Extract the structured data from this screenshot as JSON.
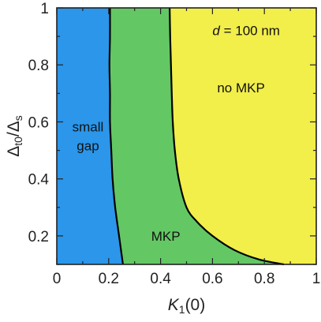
{
  "chart_data": {
    "type": "area",
    "title": "",
    "xlabel": {
      "main": "K",
      "sub": "1",
      "rest": "(0)"
    },
    "ylabel": {
      "delta1": "Δ",
      "sub1": "t0",
      "slash": "/",
      "delta2": "Δ",
      "sub2": "s"
    },
    "xlim": [
      0,
      1
    ],
    "ylim": [
      0.1,
      1
    ],
    "xticks": [
      0,
      0.2,
      0.4,
      0.6,
      0.8,
      1
    ],
    "xtick_labels": [
      "0",
      "0.2",
      "0.4",
      "0.6",
      "0.8",
      "1"
    ],
    "yticks": [
      0.2,
      0.4,
      0.6,
      0.8,
      1
    ],
    "ytick_labels": [
      "0.2",
      "0.4",
      "0.6",
      "0.8",
      "1"
    ],
    "grid": false,
    "annotation": {
      "italic": "d",
      "rest": " = 100 nm"
    },
    "colors": {
      "small_gap": "#2b96ea",
      "mkp": "#63c764",
      "no_mkp": "#f2ee4a",
      "boundary": "#000000"
    },
    "regions": [
      {
        "label_lines": [
          "small",
          "gap"
        ],
        "label_x": 0.12,
        "label_y": 0.55,
        "color_key": "small_gap"
      },
      {
        "label_lines": [
          "MKP"
        ],
        "label_x": 0.42,
        "label_y": 0.2,
        "color_key": "mkp"
      },
      {
        "label_lines": [
          "no MKP"
        ],
        "label_x": 0.71,
        "label_y": 0.72,
        "color_key": "no_mkp"
      }
    ],
    "boundaries": [
      {
        "between": [
          "small gap",
          "MKP"
        ],
        "points": [
          [
            0.255,
            0.1
          ],
          [
            0.24,
            0.2
          ],
          [
            0.225,
            0.3
          ],
          [
            0.215,
            0.4
          ],
          [
            0.21,
            0.5
          ],
          [
            0.205,
            0.6
          ],
          [
            0.205,
            0.7
          ],
          [
            0.203,
            0.8
          ],
          [
            0.205,
            0.9
          ],
          [
            0.205,
            1.0
          ]
        ]
      },
      {
        "between": [
          "MKP",
          "no MKP"
        ],
        "points": [
          [
            0.875,
            0.1
          ],
          [
            0.78,
            0.117
          ],
          [
            0.685,
            0.15
          ],
          [
            0.6,
            0.2
          ],
          [
            0.54,
            0.25
          ],
          [
            0.5,
            0.3
          ],
          [
            0.47,
            0.4
          ],
          [
            0.455,
            0.5
          ],
          [
            0.447,
            0.6
          ],
          [
            0.443,
            0.7
          ],
          [
            0.44,
            0.8
          ],
          [
            0.437,
            0.9
          ],
          [
            0.435,
            1.0
          ]
        ]
      }
    ]
  }
}
